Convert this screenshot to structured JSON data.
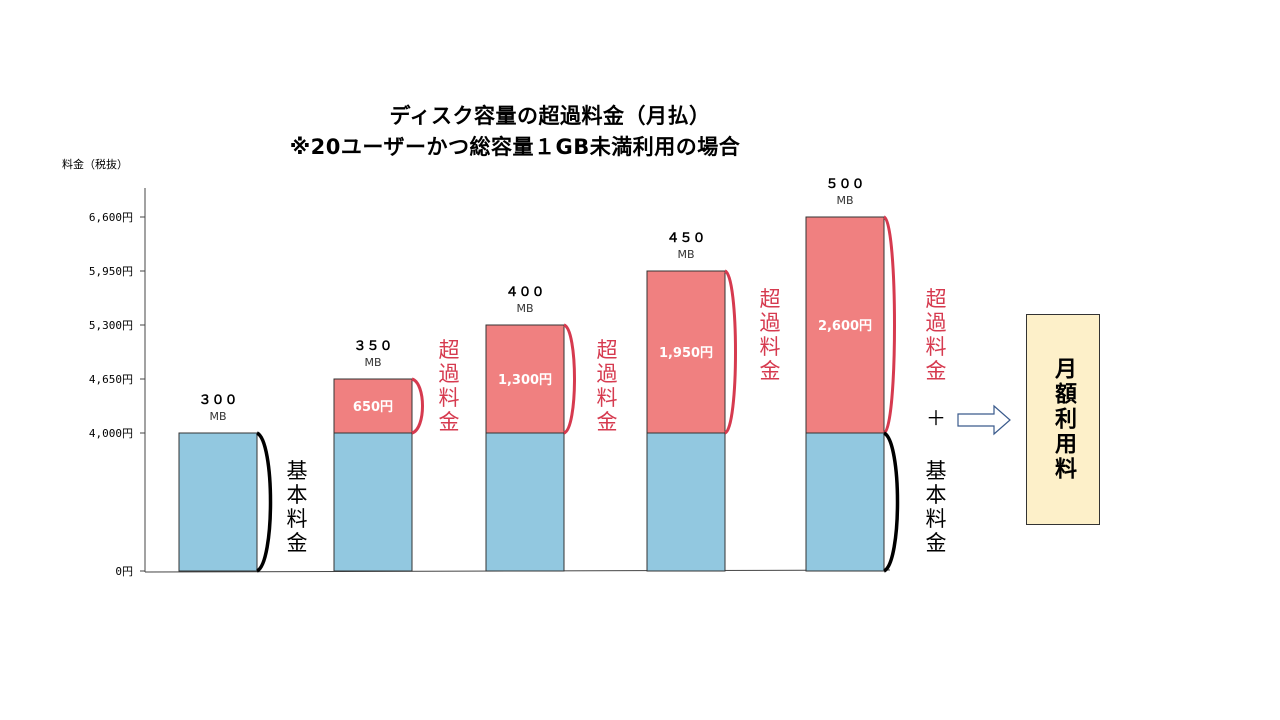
{
  "chart_data": {
    "type": "bar",
    "title": "ディスク容量の超過料金（月払）",
    "subtitle": "※20ユーザーかつ総容量１GB未満利用の場合",
    "ylabel": "料金（税抜）",
    "ylim": [
      0,
      6600
    ],
    "y_ticks": [
      0,
      4000,
      4650,
      5300,
      5950,
      6600
    ],
    "y_tick_labels": [
      "0円",
      "4,000円",
      "4,650円",
      "5,300円",
      "5,950円",
      "6,600円"
    ],
    "categories": [
      "３００\nMB",
      "３５０\nMB",
      "４００\nMB",
      "４５０\nMB",
      "５００\nMB"
    ],
    "category_numbers": [
      "３００",
      "３５０",
      "４００",
      "４５０",
      "５００"
    ],
    "category_unit": "MB",
    "series": [
      {
        "name": "基本料金",
        "values": [
          4000,
          4000,
          4000,
          4000,
          4000
        ],
        "color": "#92c8e0"
      },
      {
        "name": "超過料金",
        "values": [
          0,
          650,
          1300,
          1950,
          2600
        ],
        "color": "#f08080",
        "data_labels": [
          "",
          "650円",
          "1,300円",
          "1,950円",
          "2,600円"
        ]
      }
    ],
    "annotations": {
      "base_fee": "基本料金",
      "overage_fee": "超過料金",
      "plus": "＋",
      "total": "月額利用料"
    }
  },
  "colors": {
    "base": "#92c8e0",
    "overage": "#f08080",
    "bracket_red": "#d63a4f",
    "total_box": "#fdf0c9"
  }
}
